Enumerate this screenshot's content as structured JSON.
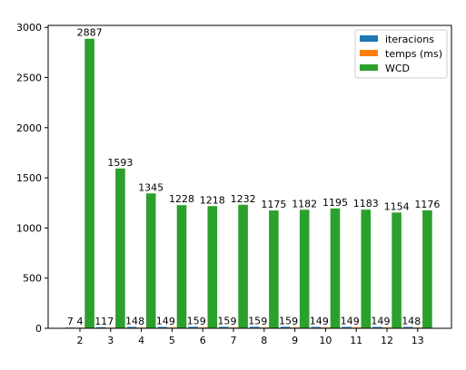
{
  "chart_data": {
    "type": "bar",
    "categories": [
      "2",
      "3",
      "4",
      "5",
      "6",
      "7",
      "8",
      "9",
      "10",
      "11",
      "12",
      "13"
    ],
    "series": [
      {
        "name": "iteracions",
        "color": "#1f77b4",
        "values": [
          7,
          11,
          14,
          14,
          15,
          15,
          15,
          15,
          14,
          14,
          14,
          14
        ],
        "labels": [
          "7",
          "11",
          "14",
          "14",
          "15",
          "15",
          "15",
          "15",
          "14",
          "14",
          "14",
          "14"
        ]
      },
      {
        "name": "temps (ms)",
        "color": "#ff7f0e",
        "values": [
          4,
          7,
          8,
          9,
          9,
          9,
          9,
          9,
          9,
          9,
          9,
          8
        ],
        "labels": [
          "4",
          "7",
          "8",
          "9",
          "9",
          "9",
          "9",
          "9",
          "9",
          "9",
          "9",
          "8"
        ]
      },
      {
        "name": "WCD",
        "color": "#2ca02c",
        "values": [
          2887,
          1593,
          1345,
          1228,
          1218,
          1232,
          1175,
          1182,
          1195,
          1183,
          1154,
          1176
        ],
        "labels": [
          "2887",
          "1593",
          "1345",
          "1228",
          "1218",
          "1232",
          "1175",
          "1182",
          "1195",
          "1183",
          "1154",
          "1176"
        ]
      }
    ],
    "yticks": [
      "0",
      "500",
      "1000",
      "1500",
      "2000",
      "2500",
      "3000"
    ],
    "ylim": [
      0,
      3020
    ],
    "title": "",
    "xlabel": "",
    "ylabel": "",
    "legend": "top-right",
    "grid": false
  }
}
